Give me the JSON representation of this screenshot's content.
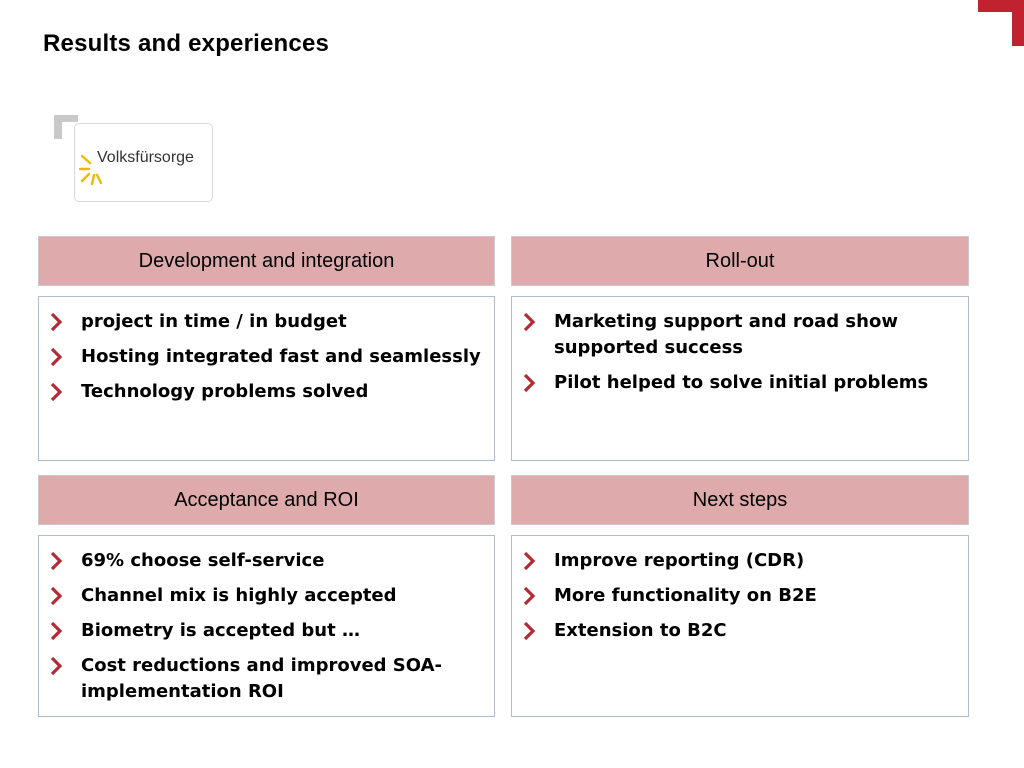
{
  "page_title": "Results and experiences",
  "logo": {
    "text": "Volksfürsorge",
    "sun_color": "#f4b800"
  },
  "colors": {
    "header_bg": "#dfaaab",
    "bullet": "#b52b34",
    "corner": "#c0232f"
  },
  "panels": [
    {
      "title": "Development and integration",
      "items": [
        "project in time / in budget",
        "Hosting integrated fast and seamlessly",
        "Technology problems solved"
      ]
    },
    {
      "title": "Roll-out",
      "items": [
        "Marketing support and road show supported success",
        "Pilot helped to solve initial problems"
      ]
    },
    {
      "title": "Acceptance and ROI",
      "items": [
        "69% choose self-service",
        "Channel mix is highly accepted",
        "Biometry is accepted but …",
        "Cost reductions and improved SOA-implementation ROI"
      ]
    },
    {
      "title": "Next steps",
      "items": [
        "Improve reporting (CDR)",
        "More functionality on B2E",
        "Extension to B2C"
      ]
    }
  ]
}
